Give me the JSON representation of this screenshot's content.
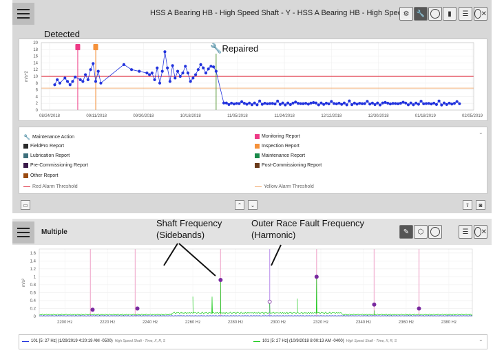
{
  "top_toolbar": {
    "title": "HSS A Bearing HB - High Speed Shaft - Y - HSS A Bearing HB - High Speed Shaft -"
  },
  "top_chart": {
    "ylabel": "m/s^2",
    "yticks": [
      "0",
      "2",
      "4",
      "6",
      "8",
      "10",
      "12",
      "14",
      "16",
      "18",
      "20"
    ],
    "xticks": [
      "08/24/2018",
      "09/11/2018",
      "09/30/2018",
      "10/18/2018",
      "11/05/2018",
      "11/24/2018",
      "12/12/2018",
      "12/30/2018",
      "01/18/2019",
      "02/05/2019"
    ],
    "red_threshold": 10,
    "yellow_threshold": 6.5,
    "monitoring_date": "09/04/2018",
    "inspection_date": "09/11/2018",
    "repair_date": "10/28/2018",
    "colors": {
      "series": "#2233dd",
      "red": "#e03a4a",
      "yellow": "#f3b07a",
      "monitor": "#ee3a86",
      "inspect": "#f5913a",
      "repair": "#5a9a3a"
    }
  },
  "annotations": {
    "detected": "Detected",
    "repaired": "Repaired",
    "shaft": "Shaft Frequency",
    "shaft2": "(Sidebands)",
    "outer": "Outer Race Fault Frequency",
    "outer2": "(Harmonic)"
  },
  "legend": {
    "maintenance_action": "Maintenance Action",
    "fieldpro": "FieldPro Report",
    "lubrication": "Lubrication Report",
    "precomm": "Pre-Commissioning Report",
    "other": "Other Report",
    "red_alarm": "Red Alarm Threshold",
    "monitoring": "Monitoring Report",
    "inspection": "Inspection Report",
    "maintenance": "Maintenance Report",
    "postcomm": "Post-Commissioning Report",
    "yellow_alarm": "Yellow Alarm Threshold"
  },
  "bottom_toolbar": {
    "title": "Multiple"
  },
  "bottom_chart": {
    "ylabel": "m/s²",
    "yticks": [
      "0",
      "0.2",
      "0.4",
      "0.6",
      "0.8",
      "1",
      "1.2",
      "1.4",
      "1.6"
    ],
    "xticks": [
      "2200 Hz",
      "2220 Hz",
      "2240 Hz",
      "2260 Hz",
      "2280 Hz",
      "2300 Hz",
      "2320 Hz",
      "2340 Hz",
      "2360 Hz",
      "2380 Hz"
    ],
    "xlim": [
      2188,
      2391
    ],
    "ylim": [
      0,
      1.7
    ],
    "sideband_lines": [
      2212,
      2233,
      2273,
      2296,
      2318,
      2345,
      2366
    ],
    "markers_purple": [
      {
        "f": 2213,
        "a": 0.17
      },
      {
        "f": 2234,
        "a": 0.2
      },
      {
        "f": 2273,
        "a": 0.92
      },
      {
        "f": 2318,
        "a": 1.0
      },
      {
        "f": 2345,
        "a": 0.3
      },
      {
        "f": 2366,
        "a": 0.2
      }
    ],
    "marker_open": {
      "f": 2296,
      "a": 0.37
    },
    "green_peaks": [
      {
        "f": 2260,
        "a": 0.5
      },
      {
        "f": 2269,
        "a": 0.5
      },
      {
        "f": 2273,
        "a": 0.92
      },
      {
        "f": 2296,
        "a": 0.38
      },
      {
        "f": 2309,
        "a": 0.45
      },
      {
        "f": 2318,
        "a": 1.0
      },
      {
        "f": 2345,
        "a": 0.15
      }
    ],
    "legend_blue": "101 [5: 27 Hz] (1/29/2019 4:20:19 AM -0500)",
    "legend_blue_sub": "High Speed Shaft - Time, X, R, S",
    "legend_green": "101 [5: 27 Hz] (10/9/2018 8:00:13 AM -0400)",
    "legend_green_sub": "High Speed Shaft - Time, X, R, S",
    "colors": {
      "green": "#22cc22",
      "blue": "#2233dd",
      "sideband": "#f2b7d4",
      "harmonic": "#c9a7f0",
      "marker": "#7a2aa0"
    }
  }
}
